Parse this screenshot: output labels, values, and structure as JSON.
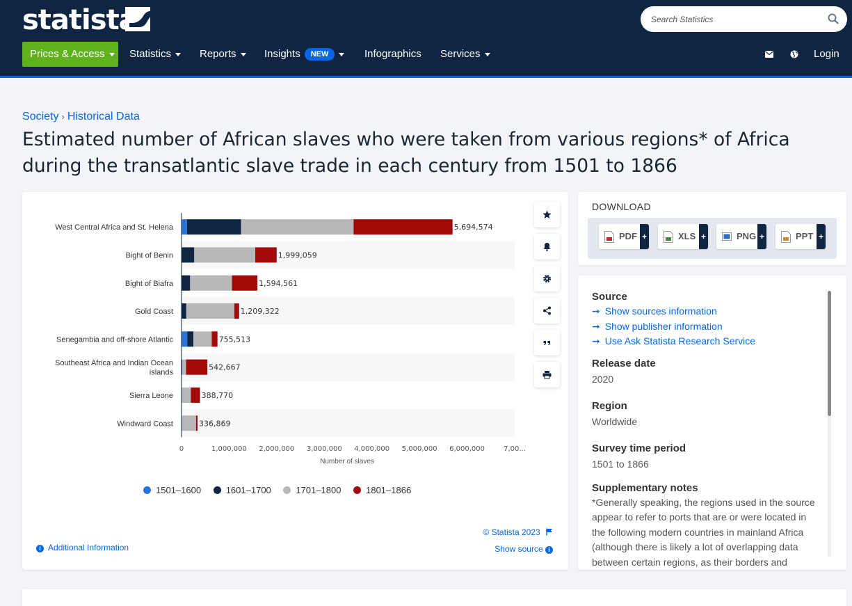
{
  "header": {
    "logo_text": "statista",
    "search_placeholder": "Search Statistics",
    "nav": [
      {
        "label": "Prices & Access"
      },
      {
        "label": "Statistics"
      },
      {
        "label": "Reports"
      },
      {
        "label": "Insights",
        "badge": "NEW"
      },
      {
        "label": "Infographics"
      },
      {
        "label": "Services"
      }
    ],
    "login_label": "Login",
    "colors": {
      "background": "#0f2541",
      "accent_green": "#5fb21d",
      "accent_blue": "#0666e5"
    }
  },
  "breadcrumb": {
    "items": [
      "Society",
      "Historical Data"
    ],
    "separator": "›"
  },
  "title": "Estimated number of African slaves who were taken from various regions* of Africa during the transatlantic slave trade in each century from 1501 to 1866",
  "chart_data": {
    "type": "bar",
    "orientation": "horizontal",
    "stacked": true,
    "categories": [
      "West Central Africa and St. Helena",
      "Bight of Benin",
      "Bight of Biafra",
      "Gold Coast",
      "Senegambia and off-shore Atlantic",
      "Southeast Africa and Indian Ocean islands",
      "Sierra Leone",
      "Windward Coast"
    ],
    "series": [
      {
        "name": "1501-1600",
        "color": "#2876dd",
        "values": [
          115000,
          2000,
          0,
          0,
          120000,
          0,
          0,
          0
        ]
      },
      {
        "name": "1601-1700",
        "color": "#0f2541",
        "values": [
          1135000,
          265000,
          180000,
          100000,
          130000,
          15000,
          5000,
          0
        ]
      },
      {
        "name": "1701-1800",
        "color": "#b8b8b8",
        "values": [
          2365000,
          1282000,
          880000,
          1010000,
          385000,
          80000,
          190000,
          305000
        ]
      },
      {
        "name": "1801-1866",
        "color": "#a30b0b",
        "values": [
          2079574,
          450059,
          534561,
          99322,
          120513,
          447667,
          193770,
          31869
        ]
      }
    ],
    "totals": [
      "5,694,574",
      "1,999,059",
      "1,594,561",
      "1,209,322",
      "755,513",
      "542,667",
      "388,770",
      "336,869"
    ],
    "x_ticks": [
      "0",
      "1,000,000",
      "2,000,000",
      "3,000,000",
      "4,000,000",
      "5,000,000",
      "6,000,000",
      "7,00..."
    ],
    "xlabel": "Number of slaves",
    "xlim": [
      0,
      7000000
    ],
    "legend": [
      "1501–1600",
      "1601–1700",
      "1701–1800",
      "1801–1866"
    ],
    "legend_position": "bottom",
    "grid": false,
    "copyright": "© Statista 2023",
    "show_source": "Show source",
    "additional_info": "Additional Information"
  },
  "download": {
    "title": "DOWNLOAD",
    "buttons": [
      {
        "label": "PDF",
        "icon_color": "#c0272d"
      },
      {
        "label": "XLS",
        "icon_color": "#3d8e33"
      },
      {
        "label": "PNG",
        "icon_color": "#2f6fb5"
      },
      {
        "label": "PPT",
        "icon_color": "#d9822b"
      }
    ],
    "plus": "+"
  },
  "info": {
    "source_heading": "Source",
    "links": [
      "Show sources information",
      "Show publisher information",
      "Use Ask Statista Research Service"
    ],
    "release_heading": "Release date",
    "release_value": "2020",
    "region_heading": "Region",
    "region_value": "Worldwide",
    "survey_heading": "Survey time period",
    "survey_value": "1501 to 1866",
    "notes_heading": "Supplementary notes",
    "notes_value": "*Generally speaking, the regions used in the source appear to refer to ports that are or were located in the following modern countries in mainland Africa (although there is likely a lot of overlapping data between certain regions, as their borders and"
  }
}
